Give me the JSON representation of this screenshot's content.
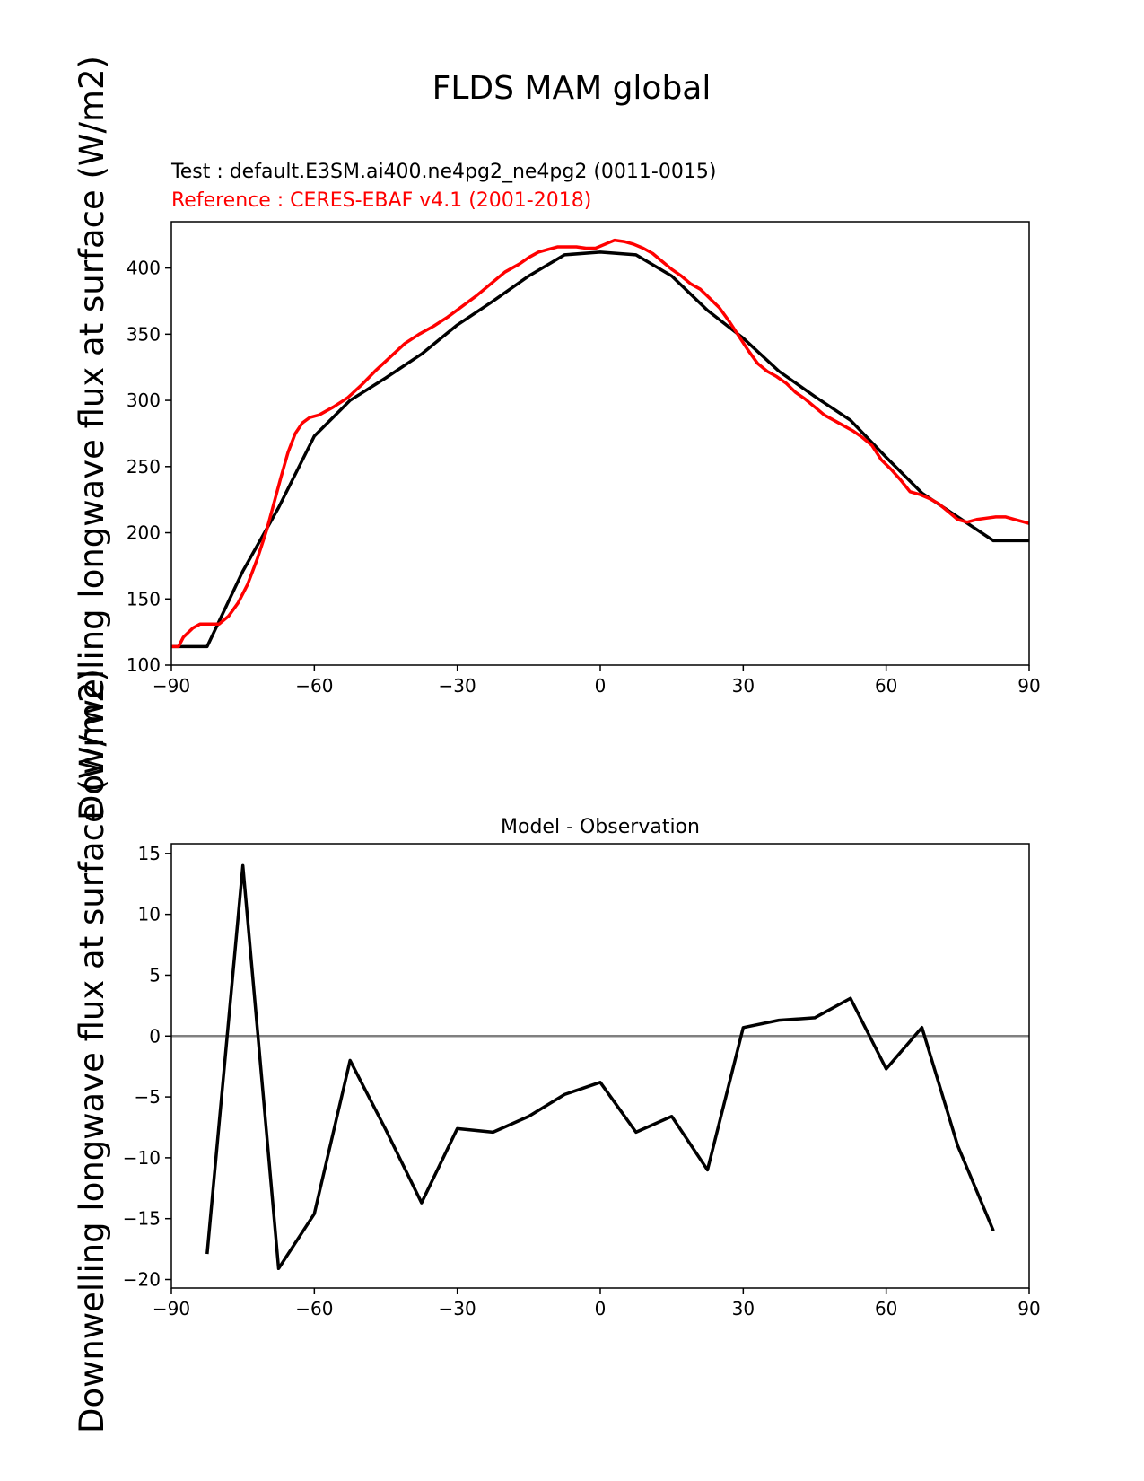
{
  "chart_data": [
    {
      "type": "line",
      "title": "FLDS MAM global",
      "subtitle_test": "Test : default.E3SM.ai400.ne4pg2_ne4pg2 (0011-0015)",
      "subtitle_reference": "Reference : CERES-EBAF v4.1 (2001-2018)",
      "ylabel": "Downwelling longwave flux at surface (W/m2)",
      "xlim": [
        -90,
        90
      ],
      "ylim": [
        100,
        435
      ],
      "xticks": [
        -90,
        -60,
        -30,
        0,
        30,
        60,
        90
      ],
      "yticks": [
        100,
        150,
        200,
        250,
        300,
        350,
        400
      ],
      "colors": {
        "test": "#000000",
        "reference": "#ff0000"
      },
      "series": [
        {
          "key": "test",
          "x": [
            -90,
            -82.5,
            -75,
            -67.5,
            -60,
            -52.5,
            -45,
            -37.5,
            -30,
            -22.5,
            -15,
            -7.5,
            0,
            7.5,
            15,
            22.5,
            30,
            37.5,
            45,
            52.5,
            60,
            67.5,
            75,
            82.5,
            90
          ],
          "values": [
            114,
            114,
            171,
            219,
            273,
            300,
            317,
            335,
            357,
            375,
            394,
            410,
            412,
            410,
            394,
            368,
            347,
            322,
            303,
            285,
            257,
            230,
            212,
            194,
            194
          ]
        },
        {
          "key": "reference",
          "x": [
            -90,
            -88.5,
            -87.5,
            -85.5,
            -84,
            -81,
            -80,
            -78,
            -76,
            -74,
            -72,
            -70,
            -68.5,
            -67,
            -65.5,
            -64,
            -62.5,
            -61,
            -59,
            -56,
            -53,
            -50,
            -47,
            -44,
            -41,
            -38,
            -35,
            -32,
            -29,
            -26,
            -23,
            -20,
            -17,
            -15,
            -13,
            -11,
            -9,
            -7,
            -5,
            -3,
            -1,
            1,
            3,
            5,
            7,
            9,
            11,
            13,
            15,
            17,
            19,
            21,
            23,
            25,
            27,
            29,
            31,
            33,
            35,
            37,
            39,
            41,
            43,
            45,
            47,
            49,
            51,
            53,
            55,
            57,
            59,
            61,
            63,
            65,
            67,
            69,
            71,
            73,
            75,
            77,
            79,
            81,
            83,
            85,
            87,
            89,
            90
          ],
          "values": [
            114,
            114,
            121,
            128,
            131,
            131,
            131,
            137,
            147,
            161,
            180,
            202,
            222,
            242,
            261,
            275,
            283,
            287,
            289,
            295,
            302,
            312,
            323,
            333,
            343,
            350,
            356,
            363,
            371,
            379,
            388,
            397,
            403,
            408,
            412,
            414,
            416,
            416,
            416,
            415,
            415,
            418,
            421,
            420,
            418,
            415,
            411,
            405,
            399,
            394,
            388,
            384,
            377,
            370,
            360,
            349,
            338,
            328,
            322,
            318,
            313,
            306,
            301,
            295,
            289,
            285,
            281,
            277,
            272,
            266,
            255,
            248,
            240,
            231,
            229,
            226,
            222,
            216,
            210,
            208,
            210,
            211,
            212,
            212,
            210,
            208,
            207
          ]
        }
      ]
    },
    {
      "type": "line",
      "title": "Model - Observation",
      "ylabel": "Downwelling longwave flux at surface (W/m2)",
      "xlim": [
        -90,
        90
      ],
      "ylim": [
        -20.7,
        15.8
      ],
      "xticks": [
        -90,
        -60,
        -30,
        0,
        30,
        60,
        90
      ],
      "yticks": [
        -20,
        -15,
        -10,
        -5,
        0,
        5,
        10,
        15
      ],
      "zero_line_color": "#808080",
      "series": [
        {
          "key": "difference",
          "x": [
            -82.5,
            -75,
            -67.5,
            -60,
            -52.5,
            -45,
            -37.5,
            -30,
            -22.5,
            -15,
            -7.5,
            0,
            7.5,
            15,
            22.5,
            30,
            37.5,
            45,
            52.5,
            60,
            67.5,
            75,
            82.5
          ],
          "values": [
            -17.9,
            14.0,
            -19.1,
            -14.6,
            -2.0,
            -7.7,
            -13.7,
            -7.6,
            -7.9,
            -6.6,
            -4.8,
            -3.8,
            -7.9,
            -6.6,
            -11.0,
            0.7,
            1.3,
            1.5,
            3.1,
            -2.7,
            0.7,
            -9.0,
            -16.0
          ]
        }
      ]
    }
  ]
}
